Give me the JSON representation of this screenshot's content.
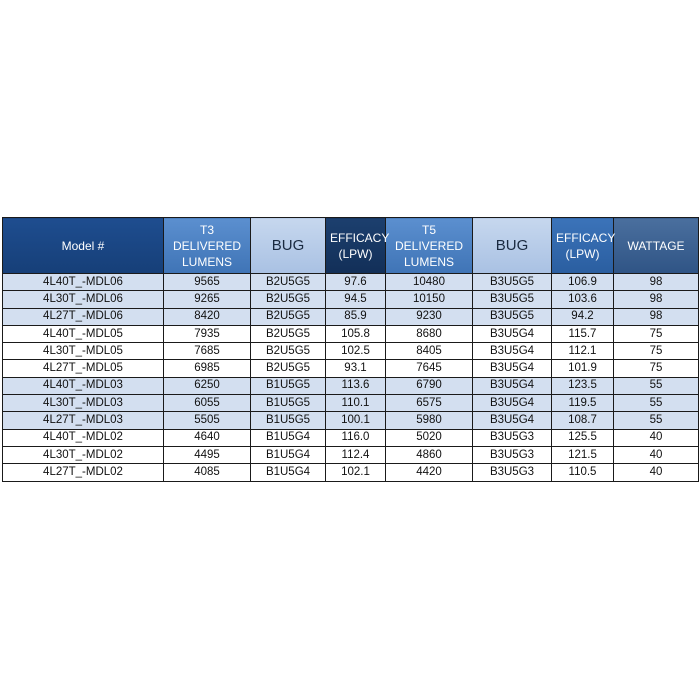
{
  "table": {
    "header": [
      "Model #",
      "T3 DELIVERED LUMENS",
      "BUG",
      "EFFICACY (LPW)",
      "T5 DELIVERED LUMENS",
      "BUG",
      "EFFICACY (LPW)",
      "WATTAGE"
    ],
    "rows": [
      [
        "4L40T_-MDL06",
        "9565",
        "B2U5G5",
        "97.6",
        "10480",
        "B3U5G5",
        "106.9",
        "98"
      ],
      [
        "4L30T_-MDL06",
        "9265",
        "B2U5G5",
        "94.5",
        "10150",
        "B3U5G5",
        "103.6",
        "98"
      ],
      [
        "4L27T_-MDL06",
        "8420",
        "B2U5G5",
        "85.9",
        "9230",
        "B3U5G5",
        "94.2",
        "98"
      ],
      [
        "4L40T_-MDL05",
        "7935",
        "B2U5G5",
        "105.8",
        "8680",
        "B3U5G4",
        "115.7",
        "75"
      ],
      [
        "4L30T_-MDL05",
        "7685",
        "B2U5G5",
        "102.5",
        "8405",
        "B3U5G4",
        "112.1",
        "75"
      ],
      [
        "4L27T_-MDL05",
        "6985",
        "B2U5G5",
        "93.1",
        "7645",
        "B3U5G4",
        "101.9",
        "75"
      ],
      [
        "4L40T_-MDL03",
        "6250",
        "B1U5G5",
        "113.6",
        "6790",
        "B3U5G4",
        "123.5",
        "55"
      ],
      [
        "4L30T_-MDL03",
        "6055",
        "B1U5G5",
        "110.1",
        "6575",
        "B3U5G4",
        "119.5",
        "55"
      ],
      [
        "4L27T_-MDL03",
        "5505",
        "B1U5G5",
        "100.1",
        "5980",
        "B3U5G4",
        "108.7",
        "55"
      ],
      [
        "4L40T_-MDL02",
        "4640",
        "B1U5G4",
        "116.0",
        "5020",
        "B3U5G3",
        "125.5",
        "40"
      ],
      [
        "4L30T_-MDL02",
        "4495",
        "B1U5G4",
        "112.4",
        "4860",
        "B3U5G3",
        "121.5",
        "40"
      ],
      [
        "4L27T_-MDL02",
        "4085",
        "B1U5G4",
        "102.1",
        "4420",
        "B3U5G3",
        "110.5",
        "40"
      ]
    ]
  }
}
